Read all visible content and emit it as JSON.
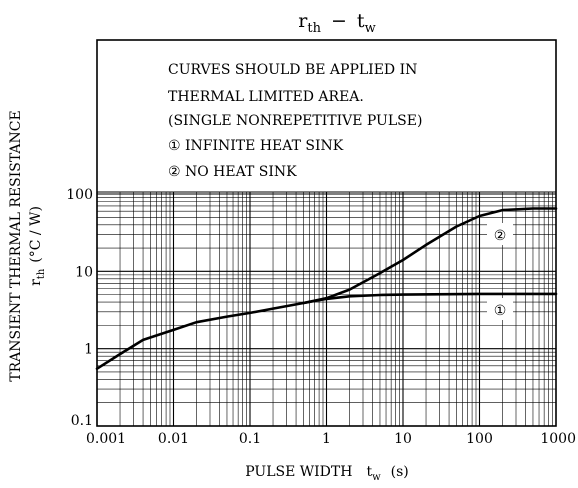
{
  "chart_data": {
    "type": "line",
    "title": {
      "main": "r",
      "main_sub": "th",
      "sep": "−",
      "var": "t",
      "var_sub": "w"
    },
    "xlabel": {
      "text": "PULSE WIDTH",
      "var": "t",
      "var_sub": "w",
      "unit": "(s)"
    },
    "ylabel": {
      "line1": "TRANSIENT THERMAL RESISTANCE",
      "var": "r",
      "var_sub": "th",
      "unit": "(°C / W)"
    },
    "x_scale": "log",
    "y_scale": "log",
    "xlim": [
      0.001,
      1000
    ],
    "ylim": [
      0.1,
      100
    ],
    "x_ticks": [
      "0.001",
      "0.01",
      "0.1",
      "1",
      "10",
      "100",
      "1000"
    ],
    "y_ticks": [
      "0.1",
      "1",
      "10",
      "100"
    ],
    "grid": true,
    "annotations": [
      "CURVES SHOULD BE APPLIED IN",
      "THERMAL LIMITED AREA.",
      "(SINGLE NONREPETITIVE PULSE)",
      "①   INFINITE HEAT SINK",
      "②   NO HEAT SINK"
    ],
    "series": [
      {
        "name": "①",
        "x": [
          0.001,
          0.002,
          0.004,
          0.01,
          0.02,
          0.05,
          0.1,
          0.2,
          0.5,
          1,
          2,
          5,
          10,
          100,
          1000
        ],
        "y": [
          0.55,
          0.85,
          1.3,
          1.75,
          2.2,
          2.6,
          2.9,
          3.3,
          3.9,
          4.4,
          4.75,
          4.95,
          5.0,
          5.1,
          5.1
        ]
      },
      {
        "name": "②",
        "x": [
          0.5,
          1,
          2,
          5,
          10,
          20,
          50,
          100,
          200,
          500,
          1000
        ],
        "y": [
          3.9,
          4.5,
          5.8,
          9.5,
          14,
          22,
          38,
          52,
          62,
          65,
          65
        ]
      }
    ]
  }
}
